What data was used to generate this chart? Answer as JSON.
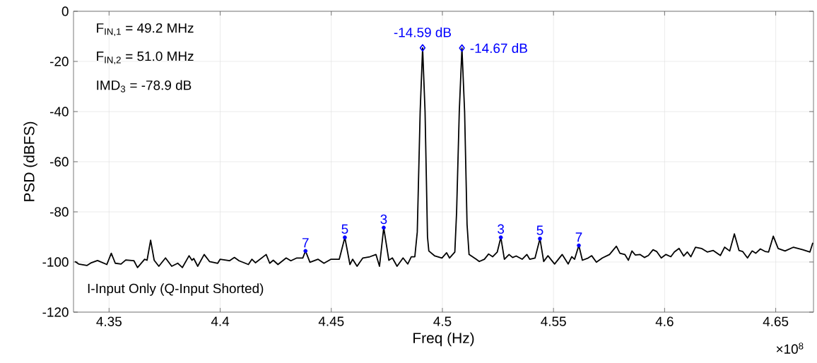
{
  "chart_data": {
    "type": "line",
    "xlabel": "Freq (Hz)",
    "ylabel": "PSD (dBFS)",
    "xlim": [
      4.334,
      4.667
    ],
    "ylim": [
      -120,
      0
    ],
    "xticks": [
      4.35,
      4.4,
      4.45,
      4.5,
      4.55,
      4.6,
      4.65
    ],
    "yticks": [
      -120,
      -100,
      -80,
      -60,
      -40,
      -20,
      0
    ],
    "grid": true,
    "annotations": [
      "F$_{IN,1}$ = 49.2 MHz",
      "F$_{IN,2}$ = 51.0 MHz",
      "IMD$_{3}$ = -78.9 dB",
      "I-Input Only (Q-Input Shorted)",
      "×10$^{8}$",
      {
        "text": "7",
        "x": 4.4384,
        "y": -95.6
      },
      {
        "text": "5",
        "x": 4.4561,
        "y": -90.2
      },
      {
        "text": "3",
        "x": 4.4736,
        "y": -86.3
      },
      {
        "text": "3",
        "x": 4.5263,
        "y": -90.2
      },
      {
        "text": "5",
        "x": 4.5439,
        "y": -90.7
      },
      {
        "text": "7",
        "x": 4.5614,
        "y": -93.4
      }
    ],
    "series": [
      {
        "color": "#000000",
        "marker": "none",
        "line_style": "solid",
        "x": [
          4.3347,
          4.3363,
          4.34,
          4.342,
          4.3448,
          4.349,
          4.351,
          4.3528,
          4.3554,
          4.3575,
          4.3612,
          4.3628,
          4.366,
          4.3671,
          4.3687,
          4.3703,
          4.3724,
          4.3754,
          4.3782,
          4.3809,
          4.383,
          4.386,
          4.3873,
          4.3881,
          4.3899,
          4.3928,
          4.3952,
          4.3989,
          4.4,
          4.4042,
          4.4064,
          4.4085,
          4.4127,
          4.4143,
          4.4159,
          4.4207,
          4.4223,
          4.4239,
          4.426,
          4.4297,
          4.4318,
          4.4345,
          4.4372,
          4.4384,
          4.4404,
          4.444,
          4.4467,
          4.4499,
          4.4536,
          4.4561,
          4.4584,
          4.4596,
          4.4616,
          4.4642,
          4.4674,
          4.4701,
          4.4717,
          4.4736,
          4.4759,
          4.4775,
          4.4796,
          4.4823,
          4.4844,
          4.486,
          4.4876,
          4.4887,
          4.49,
          4.4911,
          4.4922,
          4.4933,
          4.4939,
          4.4966,
          4.4998,
          4.5019,
          4.5032,
          4.5056,
          4.5064,
          4.5076,
          4.5088,
          4.51,
          4.5111,
          4.512,
          4.5152,
          4.5166,
          4.5189,
          4.5208,
          4.5226,
          4.5247,
          4.5263,
          4.5279,
          4.53,
          4.5316,
          4.5332,
          4.5359,
          4.538,
          4.5393,
          4.5417,
          4.5439,
          4.5456,
          4.5475,
          4.5505,
          4.5539,
          4.5566,
          4.5582,
          4.5595,
          4.5614,
          4.563,
          4.5656,
          4.5672,
          4.5693,
          4.572,
          4.5752,
          4.5783,
          4.5799,
          4.5821,
          4.5837,
          4.5853,
          4.5868,
          4.5889,
          4.5909,
          4.5927,
          4.5948,
          4.5964,
          4.5985,
          4.6006,
          4.6028,
          4.6044,
          4.6065,
          4.6086,
          4.6102,
          4.6118,
          4.6139,
          4.6166,
          4.6192,
          4.6219,
          4.6251,
          4.627,
          4.6293,
          4.6314,
          4.6335,
          4.6351,
          4.6373,
          4.6394,
          4.641,
          4.6431,
          4.6452,
          4.6468,
          4.6489,
          4.6511,
          4.6542,
          4.658,
          4.6622,
          4.6654,
          4.6667
        ],
        "values": [
          -99.8,
          -100.8,
          -101.4,
          -100.3,
          -99.4,
          -101.0,
          -96.5,
          -100.5,
          -100.8,
          -99.2,
          -99.5,
          -102.2,
          -98.9,
          -99.3,
          -91.3,
          -99.3,
          -101.7,
          -98.4,
          -101.7,
          -100.5,
          -102.2,
          -97.5,
          -99.3,
          -98.6,
          -101.7,
          -97.0,
          -99.8,
          -100.5,
          -98.9,
          -99.5,
          -98.2,
          -99.5,
          -101.0,
          -98.9,
          -100.3,
          -97.0,
          -100.5,
          -99.3,
          -101.0,
          -98.4,
          -99.5,
          -98.4,
          -98.4,
          -95.6,
          -100.1,
          -98.9,
          -100.5,
          -98.9,
          -98.9,
          -90.2,
          -101.0,
          -98.9,
          -101.7,
          -98.4,
          -97.9,
          -97.0,
          -101.7,
          -86.3,
          -99.3,
          -98.4,
          -101.7,
          -98.4,
          -100.8,
          -97.9,
          -97.9,
          -88.0,
          -40.0,
          -14.6,
          -40.0,
          -90.0,
          -95.6,
          -97.6,
          -98.4,
          -96.3,
          -98.4,
          -96.0,
          -80.0,
          -40.0,
          -14.7,
          -40.0,
          -85.0,
          -97.0,
          -98.9,
          -99.8,
          -98.9,
          -96.8,
          -97.9,
          -96.0,
          -90.2,
          -98.9,
          -97.0,
          -98.2,
          -97.6,
          -98.9,
          -97.0,
          -98.9,
          -98.4,
          -90.7,
          -99.8,
          -97.5,
          -100.8,
          -97.0,
          -100.8,
          -97.9,
          -98.9,
          -93.4,
          -99.3,
          -98.4,
          -97.5,
          -100.1,
          -98.4,
          -97.0,
          -93.7,
          -96.5,
          -97.0,
          -99.3,
          -95.6,
          -97.2,
          -97.0,
          -98.2,
          -97.4,
          -95.1,
          -95.8,
          -98.4,
          -97.0,
          -97.9,
          -96.0,
          -94.6,
          -97.6,
          -96.0,
          -97.9,
          -94.1,
          -94.6,
          -96.0,
          -95.4,
          -97.4,
          -94.1,
          -95.6,
          -88.8,
          -95.4,
          -95.8,
          -98.4,
          -95.6,
          -96.5,
          -94.8,
          -95.8,
          -96.0,
          -89.7,
          -94.6,
          -95.6,
          -94.1,
          -95.1,
          -96.0,
          -92.3
        ]
      },
      {
        "type": "scatter",
        "color": "#0000ff",
        "marker": "diamond",
        "x": [
          4.4911,
          4.5088
        ],
        "values": [
          -14.59,
          -14.67
        ],
        "value_labels": [
          "-14.59 dB",
          "-14.67 dB"
        ]
      },
      {
        "type": "scatter",
        "color": "#0000ff",
        "marker": "circle",
        "x": [
          4.4384,
          4.4561,
          4.4736,
          4.5263,
          4.5439,
          4.5614
        ],
        "values": [
          -95.6,
          -90.2,
          -86.3,
          -90.2,
          -90.7,
          -93.4
        ]
      }
    ]
  }
}
